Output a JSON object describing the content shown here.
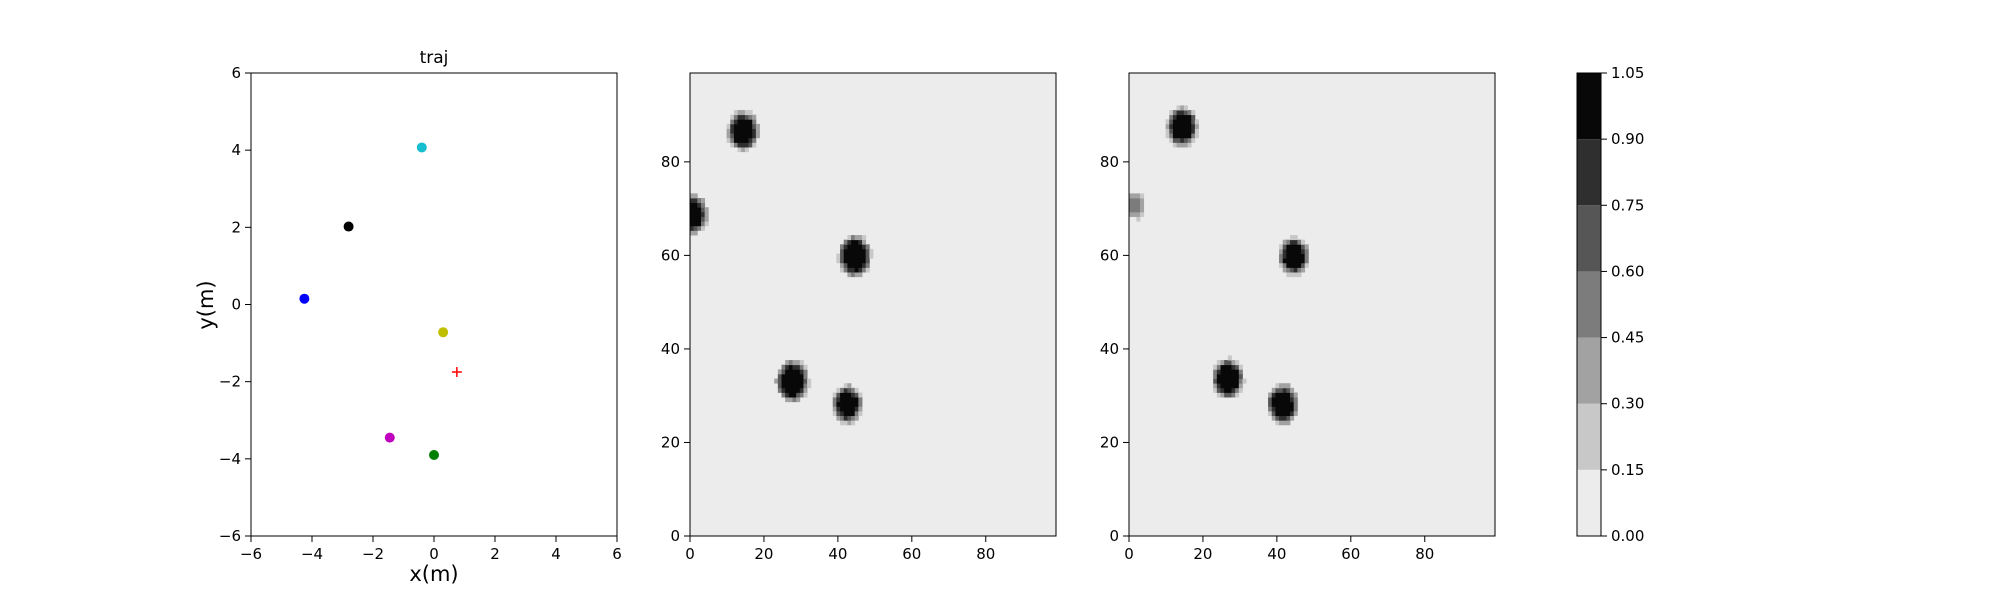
{
  "chart_data": [
    {
      "type": "scatter",
      "title": "traj",
      "xlabel": "x(m)",
      "ylabel": "y(m)",
      "xlim": [
        -6,
        6
      ],
      "ylim": [
        -6,
        6
      ],
      "xticks": [
        "−6",
        "−4",
        "−2",
        "0",
        "2",
        "4",
        "6"
      ],
      "yticks": [
        "−6",
        "−4",
        "−2",
        "0",
        "2",
        "4",
        "6"
      ],
      "grid": false,
      "points": [
        {
          "x": -0.4,
          "y": 4.07,
          "color": "#17becf",
          "marker": "circle"
        },
        {
          "x": -2.8,
          "y": 2.02,
          "color": "#000000",
          "marker": "circle"
        },
        {
          "x": -4.25,
          "y": 0.15,
          "color": "#0000ff",
          "marker": "circle"
        },
        {
          "x": 0.3,
          "y": -0.72,
          "color": "#bfbf00",
          "marker": "circle"
        },
        {
          "x": 0.75,
          "y": -1.75,
          "color": "#ff0000",
          "marker": "plus"
        },
        {
          "x": -1.45,
          "y": -3.45,
          "color": "#bf00bf",
          "marker": "circle"
        },
        {
          "x": 0.0,
          "y": -3.9,
          "color": "#008000",
          "marker": "circle"
        }
      ]
    },
    {
      "type": "heatmap",
      "xlim": [
        0,
        99
      ],
      "ylim": [
        0,
        99
      ],
      "xticks": [
        "0",
        "20",
        "40",
        "60",
        "80"
      ],
      "yticks": [
        "0",
        "20",
        "40",
        "60",
        "80"
      ],
      "background_value": 0.05,
      "blobs": [
        {
          "x": 14,
          "y": 87,
          "r": 3.8,
          "value": 1.0
        },
        {
          "x": 0,
          "y": 69,
          "r": 3.8,
          "value": 1.0
        },
        {
          "x": 44.5,
          "y": 60,
          "r": 4.0,
          "value": 1.0
        },
        {
          "x": 27.5,
          "y": 33,
          "r": 4.0,
          "value": 1.0
        },
        {
          "x": 42.5,
          "y": 28,
          "r": 3.6,
          "value": 1.0
        }
      ]
    },
    {
      "type": "heatmap",
      "xlim": [
        0,
        99
      ],
      "ylim": [
        0,
        99
      ],
      "xticks": [
        "0",
        "20",
        "40",
        "60",
        "80"
      ],
      "yticks": [
        "0",
        "20",
        "40",
        "60",
        "80"
      ],
      "background_value": 0.05,
      "blobs": [
        {
          "x": 14,
          "y": 88,
          "r": 3.8,
          "value": 1.0
        },
        {
          "x": 1,
          "y": 71,
          "r": 2.6,
          "value": 0.55
        },
        {
          "x": 44.5,
          "y": 60,
          "r": 3.6,
          "value": 1.0
        },
        {
          "x": 26.5,
          "y": 33.5,
          "r": 3.8,
          "value": 1.0
        },
        {
          "x": 41.5,
          "y": 28,
          "r": 3.8,
          "value": 1.0
        }
      ]
    },
    {
      "type": "colorbar",
      "ticks": [
        "0.00",
        "0.15",
        "0.30",
        "0.45",
        "0.60",
        "0.75",
        "0.90",
        "1.05"
      ],
      "levels": [
        0,
        0.15,
        0.3,
        0.45,
        0.6,
        0.75,
        0.9,
        1.05
      ],
      "level_colors": [
        "#ececec",
        "#c8c8c8",
        "#a2a2a2",
        "#7c7c7c",
        "#565656",
        "#2f2f2f",
        "#080808"
      ]
    }
  ]
}
